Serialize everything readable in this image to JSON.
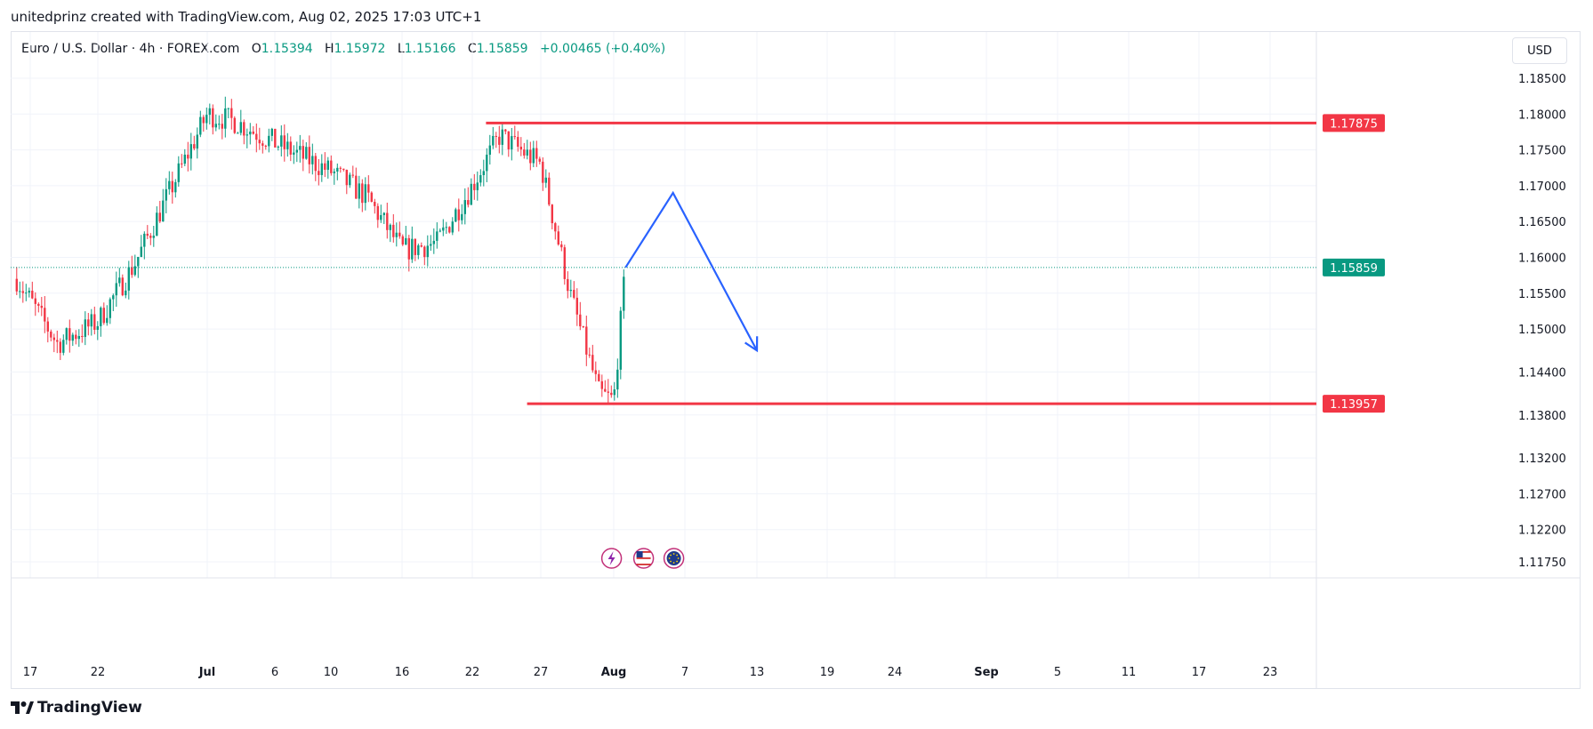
{
  "attribution": "unitedprinz created with TradingView.com, Aug 02, 2025 17:03 UTC+1",
  "legend": {
    "symbol": "Euro / U.S. Dollar · 4h · FOREX.com",
    "o_label": "O",
    "o_value": "1.15394",
    "h_label": "H",
    "h_value": "1.15972",
    "l_label": "L",
    "l_value": "1.15166",
    "c_label": "C",
    "c_value": "1.15859",
    "change": "+0.00465 (+0.40%)"
  },
  "currency": "USD",
  "footer": {
    "brand": "TradingView",
    "logo_icon": "tradingview-logo-icon"
  },
  "colors": {
    "up": "#089981",
    "down": "#f23645",
    "level": "#f23645",
    "projection": "#2962ff",
    "current_price": "#089981"
  },
  "event_icons": [
    "lightning-icon",
    "us-flag-icon",
    "eu-flag-icon"
  ],
  "chart_data": {
    "type": "candlestick",
    "title": "Euro / U.S. Dollar · 4h · FOREX.com",
    "grid": true,
    "ylim": [
      1.1157,
      1.1895
    ],
    "y_ticks": [
      "1.18500",
      "1.18000",
      "1.17500",
      "1.17000",
      "1.16500",
      "1.16000",
      "1.15500",
      "1.15000",
      "1.14400",
      "1.13800",
      "1.13200",
      "1.12700",
      "1.12200",
      "1.11750"
    ],
    "x_ticks": [
      {
        "label": "17",
        "bold": false
      },
      {
        "label": "22",
        "bold": false
      },
      {
        "label": "Jul",
        "bold": true
      },
      {
        "label": "6",
        "bold": false
      },
      {
        "label": "10",
        "bold": false
      },
      {
        "label": "16",
        "bold": false
      },
      {
        "label": "22",
        "bold": false
      },
      {
        "label": "27",
        "bold": false
      },
      {
        "label": "Aug",
        "bold": true
      },
      {
        "label": "7",
        "bold": false
      },
      {
        "label": "13",
        "bold": false
      },
      {
        "label": "19",
        "bold": false
      },
      {
        "label": "24",
        "bold": false
      },
      {
        "label": "Sep",
        "bold": true
      },
      {
        "label": "5",
        "bold": false
      },
      {
        "label": "11",
        "bold": false
      },
      {
        "label": "17",
        "bold": false
      },
      {
        "label": "23",
        "bold": false
      }
    ],
    "price_series": {
      "name": "EURUSD 4h",
      "x": [
        "Jun 16",
        "Jun 19",
        "Jun 22",
        "Jun 25",
        "Jul 1",
        "Jul 3",
        "Jul 6",
        "Jul 10",
        "Jul 13",
        "Jul 16",
        "Jul 19",
        "Jul 22",
        "Jul 24",
        "Jul 27",
        "Jul 29",
        "Jul 31",
        "Aug 1",
        "Aug 2"
      ],
      "close": [
        1.157,
        1.148,
        1.151,
        1.159,
        1.18,
        1.179,
        1.176,
        1.172,
        1.1685,
        1.161,
        1.162,
        1.17,
        1.177,
        1.173,
        1.155,
        1.141,
        1.14,
        1.15859
      ]
    },
    "levels": [
      {
        "price": 1.17875,
        "label": "1.17875",
        "start": "Jul 23"
      },
      {
        "price": 1.13957,
        "label": "1.13957",
        "start": "Jul 26"
      }
    ],
    "current_price": {
      "price": 1.15859,
      "label": "1.15859"
    },
    "projection": {
      "points": [
        {
          "x": "Aug 2",
          "y": 1.15859
        },
        {
          "x": "Aug 6",
          "y": 1.169
        },
        {
          "x": "Aug 13",
          "y": 1.147
        }
      ]
    }
  }
}
